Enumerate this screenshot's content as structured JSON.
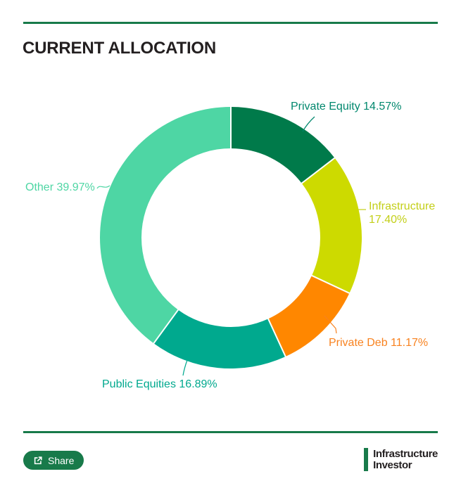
{
  "header": {
    "title": "CURRENT ALLOCATION"
  },
  "chart_data": {
    "type": "pie",
    "subtype": "donut",
    "title": "CURRENT ALLOCATION",
    "units": "%",
    "start_angle_deg": 0,
    "direction": "clockwise",
    "legend": "none",
    "series": [
      {
        "name": "Private Equity",
        "value": 14.57,
        "label": "Private Equity 14.57%",
        "color": "#007a4a",
        "label_color": "#00876d"
      },
      {
        "name": "Infrastructure",
        "value": 17.4,
        "label": "Infrastructure 17.40%",
        "color": "#cdda00",
        "label_color": "#c3cf18"
      },
      {
        "name": "Private Deb",
        "value": 11.17,
        "label": "Private Deb 11.17%",
        "color": "#ff8700",
        "label_color": "#f8821f"
      },
      {
        "name": "Public Equities",
        "value": 16.89,
        "label": "Public Equities 16.89%",
        "color": "#00a98e",
        "label_color": "#00a98e"
      },
      {
        "name": "Other",
        "value": 39.97,
        "label": "Other 39.97%",
        "color": "#4ed6a4",
        "label_color": "#4ed6a4"
      }
    ]
  },
  "footer": {
    "share_label": "Share",
    "logo_line1": "Infrastructure",
    "logo_line2": "Investor"
  },
  "colors": {
    "accent_green": "#187a4a",
    "text_dark": "#231f20",
    "background": "#ffffff",
    "separator": "#ffffff"
  }
}
